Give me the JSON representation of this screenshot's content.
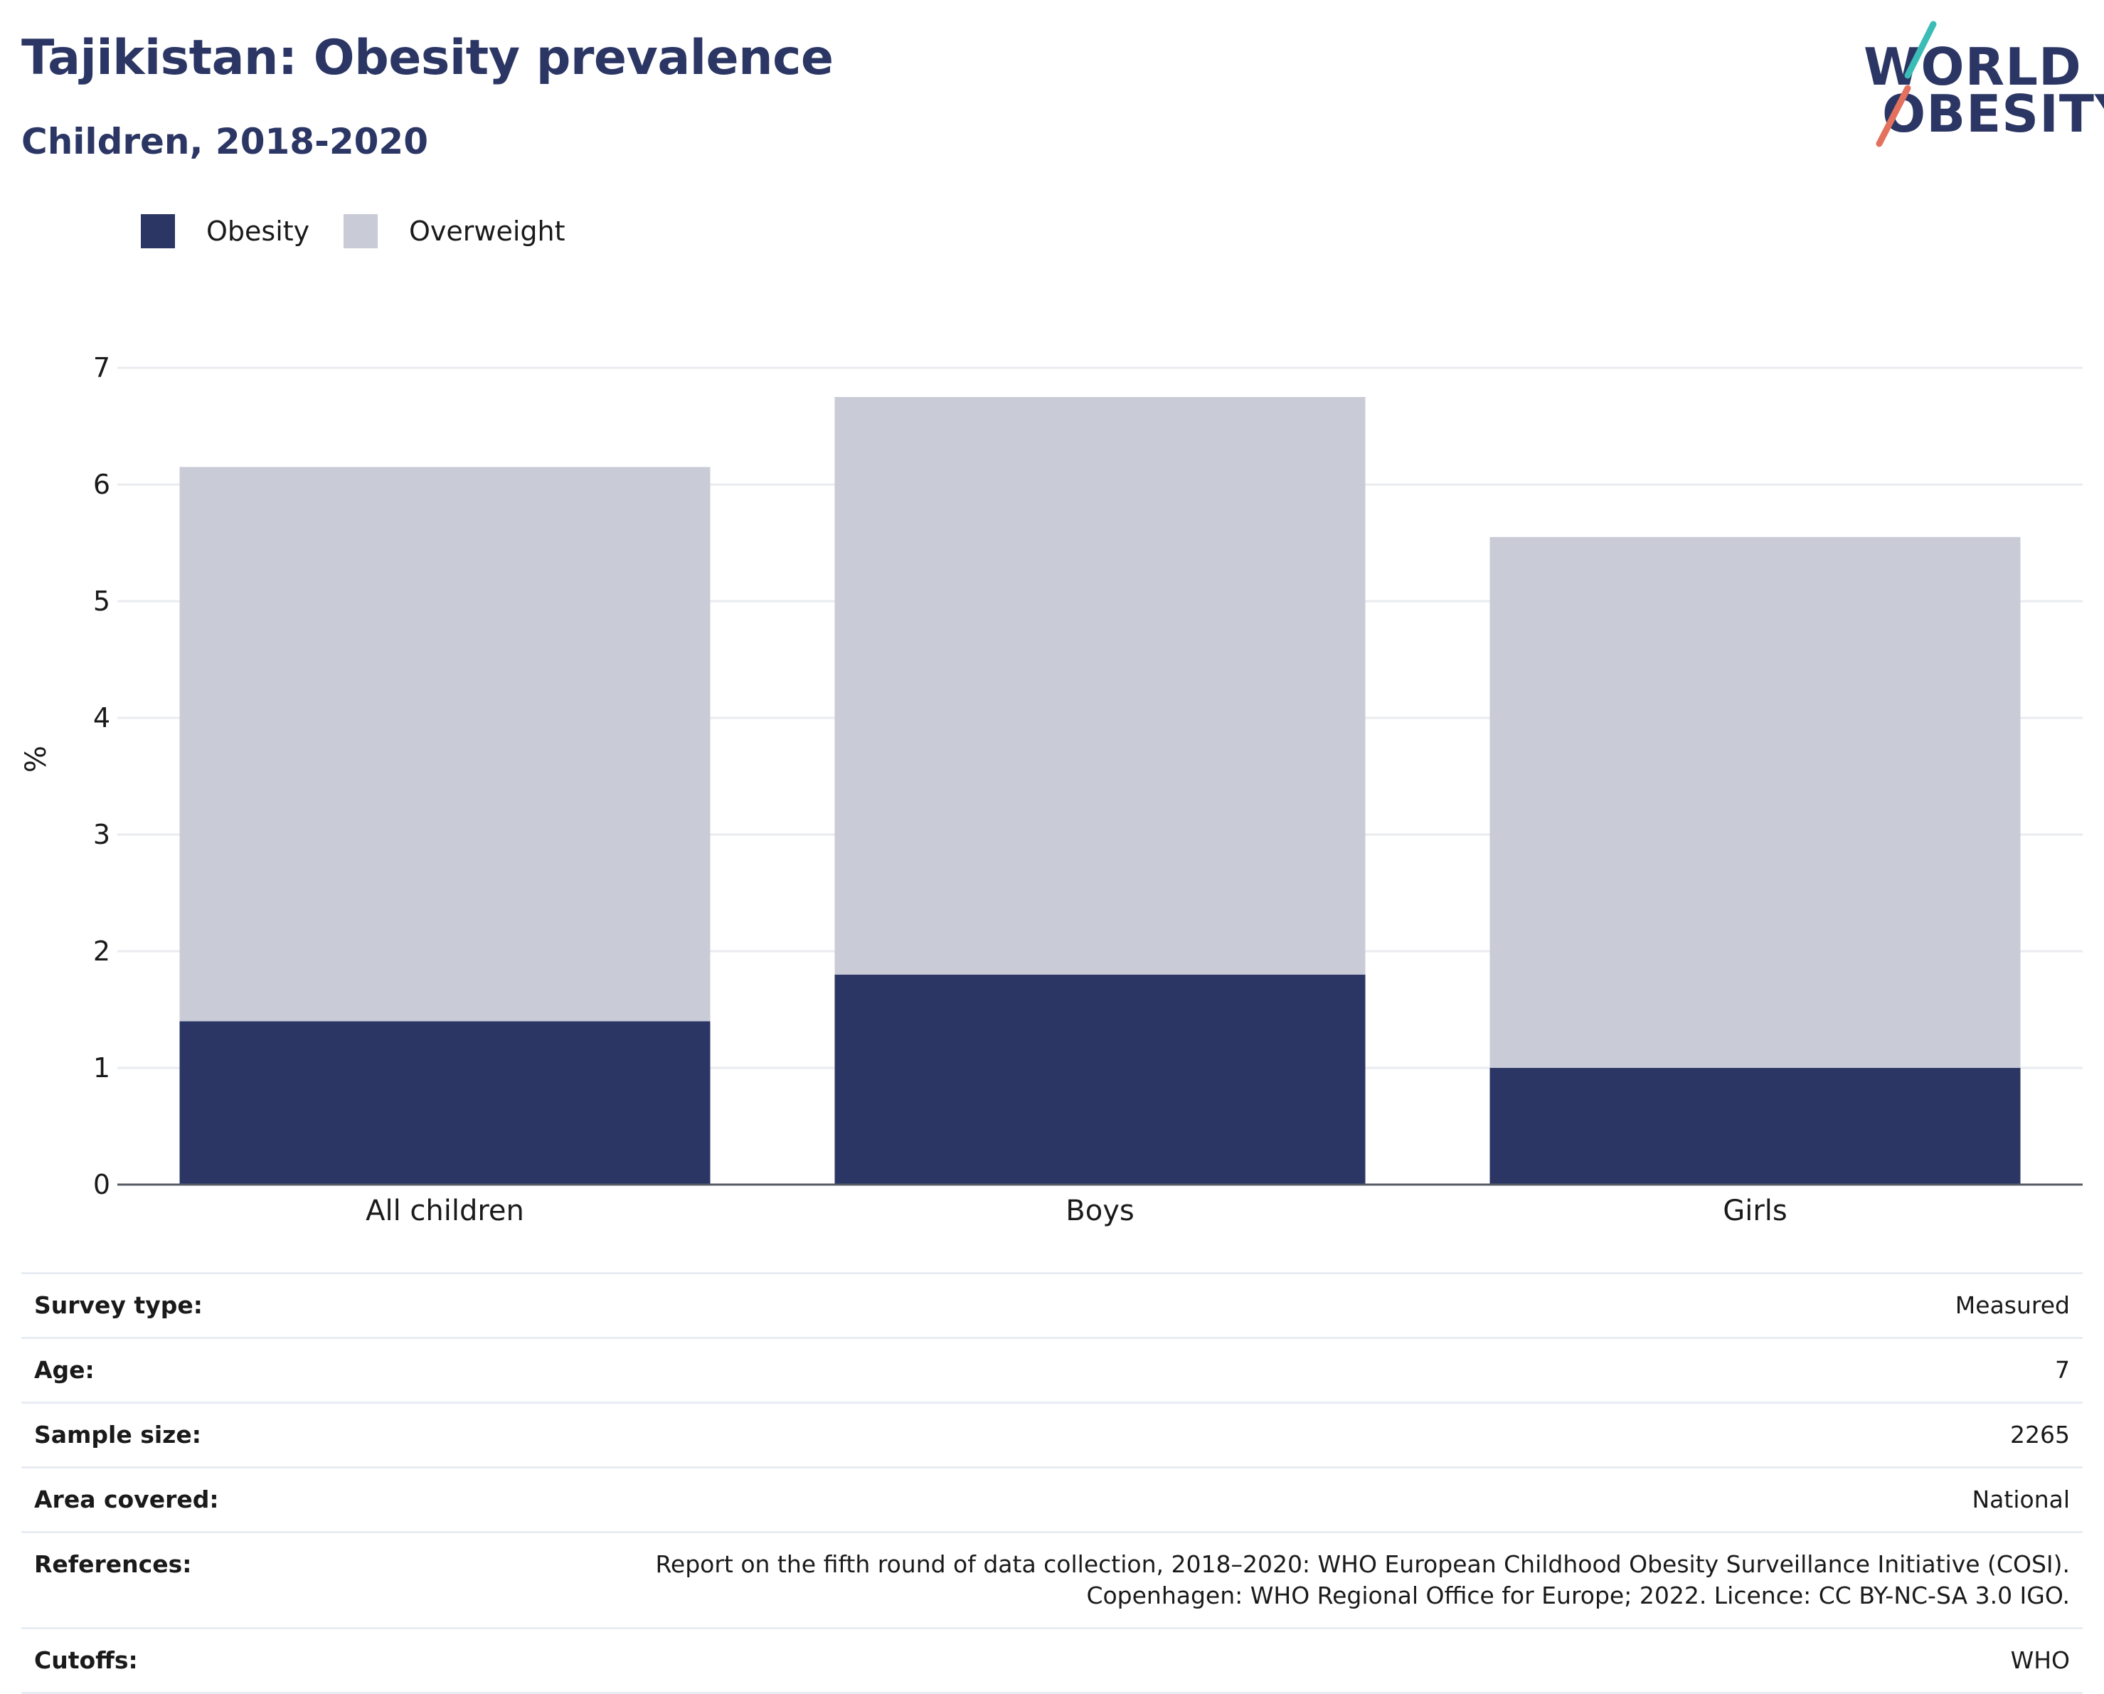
{
  "header": {
    "title": "Tajikistan: Obesity prevalence",
    "subtitle": "Children, 2018-2020"
  },
  "logo": {
    "line1": "WORLD",
    "line2": "OBESITY",
    "text_color": "#2b3664",
    "slash_top_color": "#3cbcb6",
    "slash_bottom_color": "#e4705e"
  },
  "legend": {
    "items": [
      {
        "label": "Obesity",
        "color": "#2b3664"
      },
      {
        "label": "Overweight",
        "color": "#c9cbd7"
      }
    ]
  },
  "chart_data": {
    "type": "bar",
    "stacked": true,
    "categories": [
      "All children",
      "Boys",
      "Girls"
    ],
    "series": [
      {
        "name": "Obesity",
        "values": [
          1.4,
          1.8,
          1.0
        ],
        "color": "#2b3664"
      },
      {
        "name": "Overweight",
        "values": [
          4.75,
          4.95,
          4.55
        ],
        "color": "#c9cbd7"
      }
    ],
    "ylabel": "%",
    "xlabel": "",
    "ylim": [
      0,
      7
    ],
    "yticks": [
      0,
      1,
      2,
      3,
      4,
      5,
      6,
      7
    ],
    "grid": true,
    "legend_position": "top-left"
  },
  "info_table": {
    "rows": [
      {
        "label": "Survey type:",
        "value": "Measured"
      },
      {
        "label": "Age:",
        "value": "7"
      },
      {
        "label": "Sample size:",
        "value": "2265"
      },
      {
        "label": "Area covered:",
        "value": "National"
      },
      {
        "label": "References:",
        "value": "Report on the fifth round of data collection, 2018–2020: WHO European Childhood Obesity Surveillance Initiative (COSI). Copenhagen: WHO Regional Office for Europe; 2022. Licence: CC BY-NC-SA 3.0 IGO."
      },
      {
        "label": "Cutoffs:",
        "value": "WHO"
      }
    ]
  }
}
